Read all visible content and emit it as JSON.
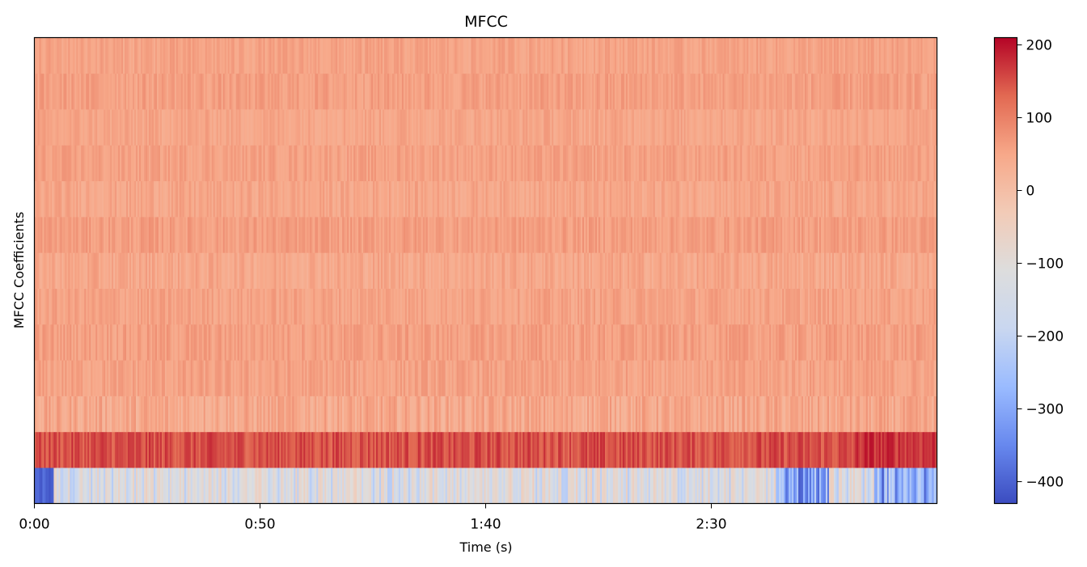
{
  "chart_data": {
    "type": "heatmap",
    "title": "MFCC",
    "xlabel": "Time (s)",
    "ylabel": "MFCC Coefficients",
    "x_range_seconds": [
      0,
      200
    ],
    "x_ticks": [
      {
        "value": 0,
        "label": "0:00"
      },
      {
        "value": 50,
        "label": "0:50"
      },
      {
        "value": 100,
        "label": "1:40"
      },
      {
        "value": 150,
        "label": "2:30"
      }
    ],
    "n_coefficients": 13,
    "coefficient_order": "bottom-to-top",
    "coefficient_value_ranges": [
      {
        "coefficient": 0,
        "min": -430,
        "max": -40,
        "typical": -140
      },
      {
        "coefficient": 1,
        "min": 110,
        "max": 200,
        "typical": 150
      },
      {
        "coefficient": 2,
        "min": 10,
        "max": 90,
        "typical": 45
      },
      {
        "coefficient": 3,
        "min": 25,
        "max": 80,
        "typical": 55
      },
      {
        "coefficient": 4,
        "min": 30,
        "max": 85,
        "typical": 60
      },
      {
        "coefficient": 5,
        "min": 30,
        "max": 80,
        "typical": 55
      },
      {
        "coefficient": 6,
        "min": 20,
        "max": 75,
        "typical": 48
      },
      {
        "coefficient": 7,
        "min": 35,
        "max": 85,
        "typical": 62
      },
      {
        "coefficient": 8,
        "min": 25,
        "max": 75,
        "typical": 50
      },
      {
        "coefficient": 9,
        "min": 35,
        "max": 80,
        "typical": 58
      },
      {
        "coefficient": 10,
        "min": 30,
        "max": 75,
        "typical": 52
      },
      {
        "coefficient": 11,
        "min": 35,
        "max": 85,
        "typical": 60
      },
      {
        "coefficient": 12,
        "min": 30,
        "max": 75,
        "typical": 55
      }
    ],
    "colormap": "coolwarm",
    "colormap_stops": [
      "#3b4cc0",
      "#6788ee",
      "#9abbff",
      "#c9d7f0",
      "#dddddd",
      "#f2cbb7",
      "#f7a889",
      "#e26952",
      "#b40426"
    ],
    "colorbar": {
      "vmin": -430,
      "vmax": 210,
      "ticks": [
        {
          "value": 200,
          "label": "200"
        },
        {
          "value": 100,
          "label": "100"
        },
        {
          "value": 0,
          "label": "0"
        },
        {
          "value": -100,
          "label": "−100"
        },
        {
          "value": -200,
          "label": "−200"
        },
        {
          "value": -300,
          "label": "−300"
        },
        {
          "value": -400,
          "label": "−400"
        }
      ]
    }
  }
}
